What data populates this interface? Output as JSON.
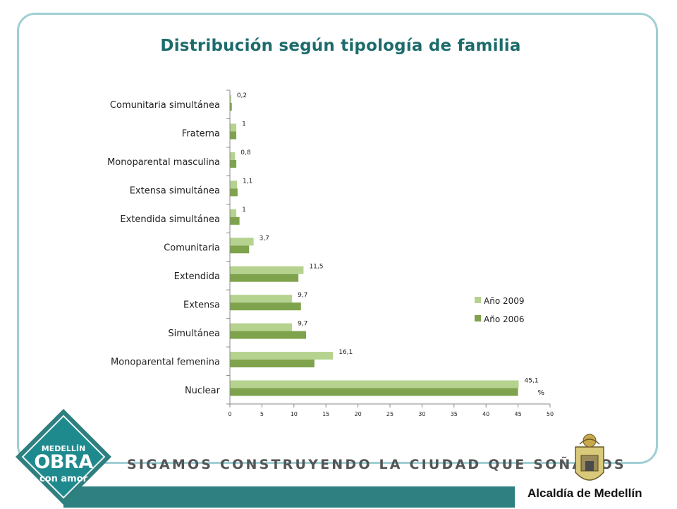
{
  "title": "Distribución según tipología de familia",
  "chart_data": {
    "type": "bar",
    "orientation": "horizontal",
    "categories": [
      "Comunitaria simultánea",
      "Fraterna",
      "Monoparental masculina",
      "Extensa simultánea",
      "Extendida simultánea",
      "Comunitaria",
      "Extendida",
      "Extensa",
      "Simultánea",
      "Monoparental femenina",
      "Nuclear"
    ],
    "series": [
      {
        "name": "Año 2009",
        "color": "#b5d28f",
        "values": [
          0.2,
          1,
          0.8,
          1.1,
          1,
          3.7,
          11.5,
          9.7,
          9.7,
          16.1,
          45.1
        ],
        "labels": [
          "0,2",
          "1",
          "0,8",
          "1,1",
          "1",
          "3,7",
          "11,5",
          "9,7",
          "9,7",
          "16,1",
          "45,1"
        ]
      },
      {
        "name": "Año 2006",
        "color": "#7fa34c",
        "values": [
          0.3,
          1,
          1,
          1.2,
          1.5,
          3,
          10.7,
          11.1,
          11.9,
          13.2,
          45
        ]
      }
    ],
    "xlim": [
      0,
      50
    ],
    "xticks": [
      0,
      5,
      10,
      15,
      20,
      25,
      30,
      35,
      40,
      45,
      50
    ],
    "unit_label": "%",
    "legend_position": "right",
    "grid": false
  },
  "footer": {
    "slogan": "SIGAMOS CONSTRUYENDO LA CIUDAD QUE SOÑAMOS",
    "logo_line1": "MEDELLÍN",
    "logo_line2": "OBRA",
    "logo_line3": "con amor",
    "institution": "Alcaldía de Medellín"
  }
}
